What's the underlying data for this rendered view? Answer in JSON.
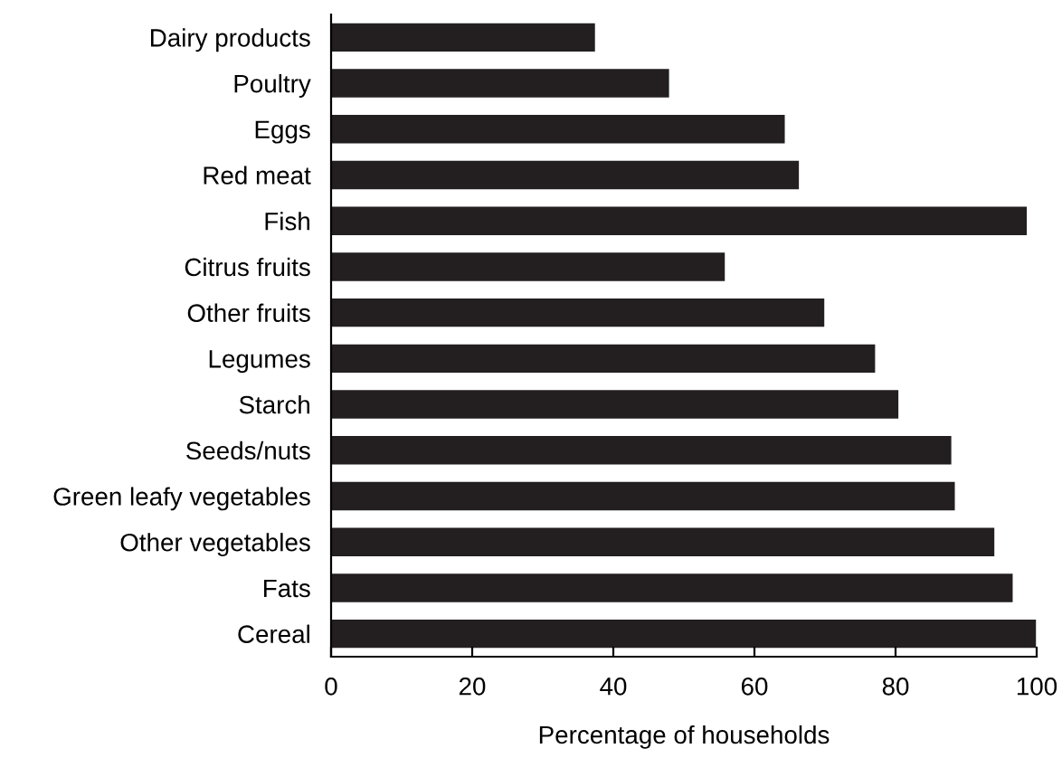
{
  "chart_data": {
    "type": "bar",
    "orientation": "horizontal",
    "xlabel": "Percentage of households",
    "categories": [
      "Dairy products",
      "Poultry",
      "Eggs",
      "Red meat",
      "Fish",
      "Citrus fruits",
      "Other fruits",
      "Legumes",
      "Starch",
      "Seeds/nuts",
      "Green leafy vegetables",
      "Other vegetables",
      "Fats",
      "Cereal"
    ],
    "values": [
      37.4,
      47.9,
      64.3,
      66.3,
      98.6,
      55.8,
      69.9,
      77.1,
      80.4,
      87.9,
      88.4,
      94.0,
      96.6,
      99.9
    ],
    "color": "#231f20",
    "xlim": [
      0,
      100
    ],
    "xticks": [
      0,
      20,
      40,
      60,
      80,
      100
    ],
    "grid": false,
    "legend": false
  }
}
